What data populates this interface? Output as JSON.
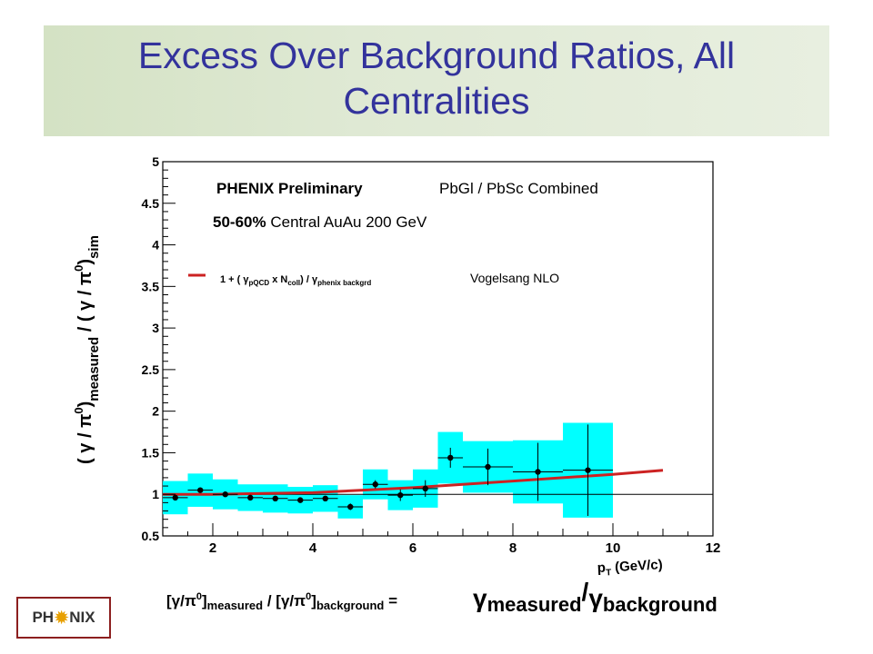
{
  "slide": {
    "title": "Excess Over Background Ratios,  All Centralities"
  },
  "logo": {
    "text_left": "PH",
    "text_right": "NIX"
  },
  "formula": {
    "left_bracket1": "[",
    "gamma1": "γ/π",
    "sup0a": "0",
    "close1": "]",
    "sub_measured": "measured",
    "slash": " / [",
    "gamma2": "γ/π",
    "sup0b": "0",
    "close2": "]",
    "sub_background": "background",
    "equals": " = ",
    "gamma3": "γ",
    "sub_measured2": "measured",
    "slash2": "/",
    "gamma4": "γ",
    "sub_background2": "background"
  },
  "chart_data": {
    "type": "scatter",
    "xlim": [
      1,
      12
    ],
    "ylim": [
      0.5,
      5
    ],
    "xticks": [
      "2",
      "4",
      "6",
      "8",
      "10",
      "12"
    ],
    "yticks": [
      "0.5",
      "1",
      "1.5",
      "2",
      "2.5",
      "3",
      "3.5",
      "4",
      "4.5",
      "5"
    ],
    "xlabel": {
      "p": "p",
      "sub": "T",
      "unit": " (GeV/c)"
    },
    "ylabel": {
      "open": "( γ / π",
      "sup0": "0",
      "close": ")",
      "sub1": "measured",
      "mid": " / ( γ / π",
      "sup0b": "0",
      "close2": ")",
      "sub2": "sim"
    },
    "annotations": {
      "preliminary": "PHENIX Preliminary",
      "detector": "PbGl / PbSc Combined",
      "centrality_bold": "50-60%",
      "centrality_rest": " Central AuAu 200 GeV",
      "legend_prefix": "1 + ( γ",
      "legend_sub1": "pQCD",
      "legend_mid": " x N",
      "legend_sub2": "coll",
      "legend_close": ") / γ",
      "legend_sub3": "phenix backgrd",
      "legend_model": "Vogelsang NLO"
    },
    "reference_line": 1,
    "points": [
      {
        "x": 1.25,
        "y": 0.96,
        "xerr": 0.25,
        "yerr": 0.03,
        "sys": 0.2
      },
      {
        "x": 1.75,
        "y": 1.05,
        "xerr": 0.25,
        "yerr": 0.03,
        "sys": 0.2
      },
      {
        "x": 2.25,
        "y": 1.0,
        "xerr": 0.25,
        "yerr": 0.03,
        "sys": 0.18
      },
      {
        "x": 2.75,
        "y": 0.96,
        "xerr": 0.25,
        "yerr": 0.03,
        "sys": 0.16
      },
      {
        "x": 3.25,
        "y": 0.95,
        "xerr": 0.25,
        "yerr": 0.03,
        "sys": 0.17
      },
      {
        "x": 3.75,
        "y": 0.93,
        "xerr": 0.25,
        "yerr": 0.03,
        "sys": 0.16
      },
      {
        "x": 4.25,
        "y": 0.95,
        "xerr": 0.25,
        "yerr": 0.03,
        "sys": 0.16
      },
      {
        "x": 4.75,
        "y": 0.85,
        "xerr": 0.25,
        "yerr": 0.04,
        "sys": 0.14
      },
      {
        "x": 5.25,
        "y": 1.12,
        "xerr": 0.25,
        "yerr": 0.05,
        "sys": 0.18
      },
      {
        "x": 5.75,
        "y": 0.99,
        "xerr": 0.25,
        "yerr": 0.07,
        "sys": 0.18
      },
      {
        "x": 6.25,
        "y": 1.07,
        "xerr": 0.25,
        "yerr": 0.1,
        "sys": 0.23
      },
      {
        "x": 6.75,
        "y": 1.44,
        "xerr": 0.25,
        "yerr": 0.12,
        "sys": 0.31
      },
      {
        "x": 7.5,
        "y": 1.33,
        "xerr": 0.5,
        "yerr": 0.22,
        "sys": 0.31
      },
      {
        "x": 8.5,
        "y": 1.27,
        "xerr": 0.5,
        "yerr": 0.35,
        "sys": 0.38
      },
      {
        "x": 9.5,
        "y": 1.29,
        "xerr": 0.5,
        "yerr": 0.55,
        "sys": 0.57
      }
    ],
    "theory_curve": {
      "x": [
        1,
        2,
        3,
        4,
        5,
        6,
        7,
        8,
        9,
        10,
        11
      ],
      "y": [
        1.0,
        1.0,
        1.01,
        1.02,
        1.05,
        1.08,
        1.12,
        1.16,
        1.2,
        1.24,
        1.29
      ]
    },
    "colors": {
      "band": "#00ffff",
      "theory": "#cc2222",
      "points": "#000000",
      "frame": "#000000"
    }
  }
}
